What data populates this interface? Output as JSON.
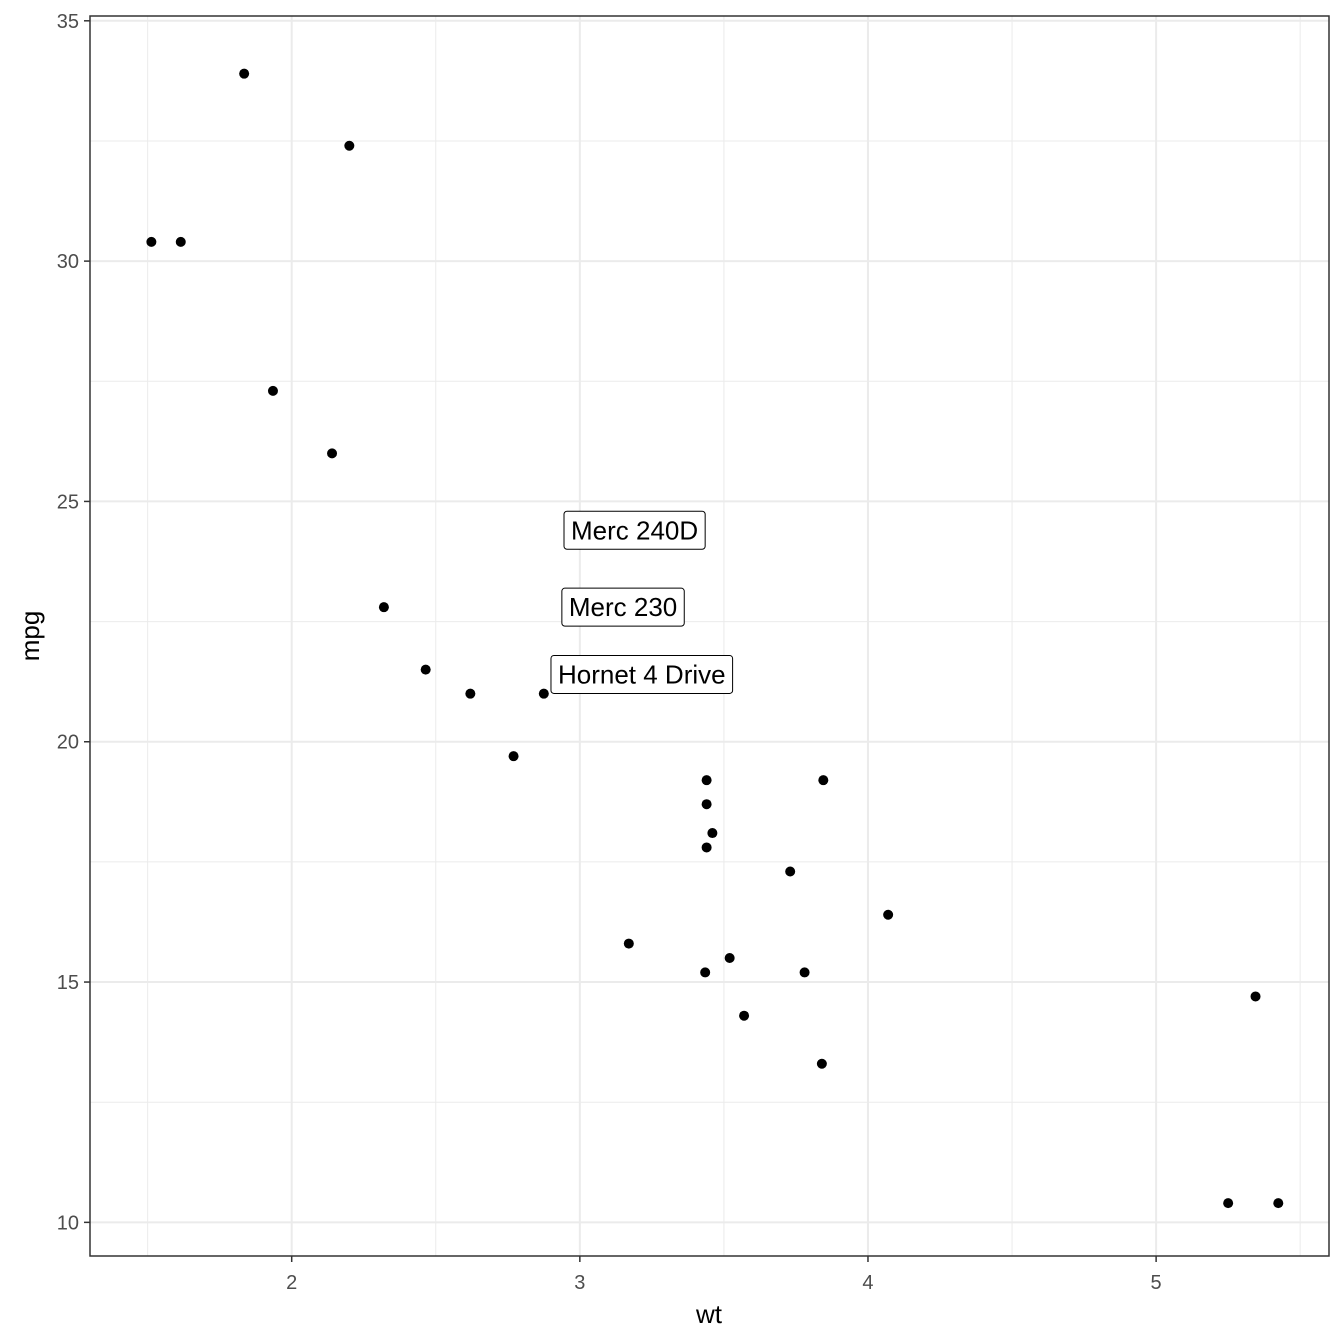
{
  "chart_data": {
    "type": "scatter",
    "title": "",
    "xlabel": "wt",
    "ylabel": "mpg",
    "xlim": [
      1.3,
      5.6
    ],
    "ylim": [
      9.3,
      35.1
    ],
    "x_ticks": [
      2,
      3,
      4,
      5
    ],
    "y_ticks": [
      10,
      15,
      20,
      25,
      30,
      35
    ],
    "grid": true,
    "legend": "none",
    "point_color": "#000000",
    "grid_color": "#ebebeb",
    "points": [
      {
        "x": 1.513,
        "y": 30.4
      },
      {
        "x": 1.615,
        "y": 30.4
      },
      {
        "x": 1.835,
        "y": 33.9
      },
      {
        "x": 1.935,
        "y": 27.3
      },
      {
        "x": 2.14,
        "y": 26.0
      },
      {
        "x": 2.2,
        "y": 32.4
      },
      {
        "x": 2.32,
        "y": 22.8
      },
      {
        "x": 2.465,
        "y": 21.5
      },
      {
        "x": 2.62,
        "y": 21.0
      },
      {
        "x": 2.77,
        "y": 19.7
      },
      {
        "x": 2.875,
        "y": 21.0
      },
      {
        "x": 3.17,
        "y": 15.8
      },
      {
        "x": 3.435,
        "y": 15.2
      },
      {
        "x": 3.44,
        "y": 19.2
      },
      {
        "x": 3.44,
        "y": 18.7
      },
      {
        "x": 3.44,
        "y": 17.8
      },
      {
        "x": 3.46,
        "y": 18.1
      },
      {
        "x": 3.52,
        "y": 15.5
      },
      {
        "x": 3.57,
        "y": 14.3
      },
      {
        "x": 3.73,
        "y": 17.3
      },
      {
        "x": 3.78,
        "y": 15.2
      },
      {
        "x": 3.84,
        "y": 13.3
      },
      {
        "x": 3.845,
        "y": 19.2
      },
      {
        "x": 4.07,
        "y": 16.4
      },
      {
        "x": 5.25,
        "y": 10.4
      },
      {
        "x": 5.345,
        "y": 14.7
      },
      {
        "x": 5.424,
        "y": 10.4
      }
    ],
    "annotations": [
      {
        "label": "Merc 240D",
        "x": 3.19,
        "y": 24.4
      },
      {
        "label": "Merc 230",
        "x": 3.15,
        "y": 22.8
      },
      {
        "label": "Hornet 4 Drive",
        "x": 3.215,
        "y": 21.4
      }
    ]
  }
}
